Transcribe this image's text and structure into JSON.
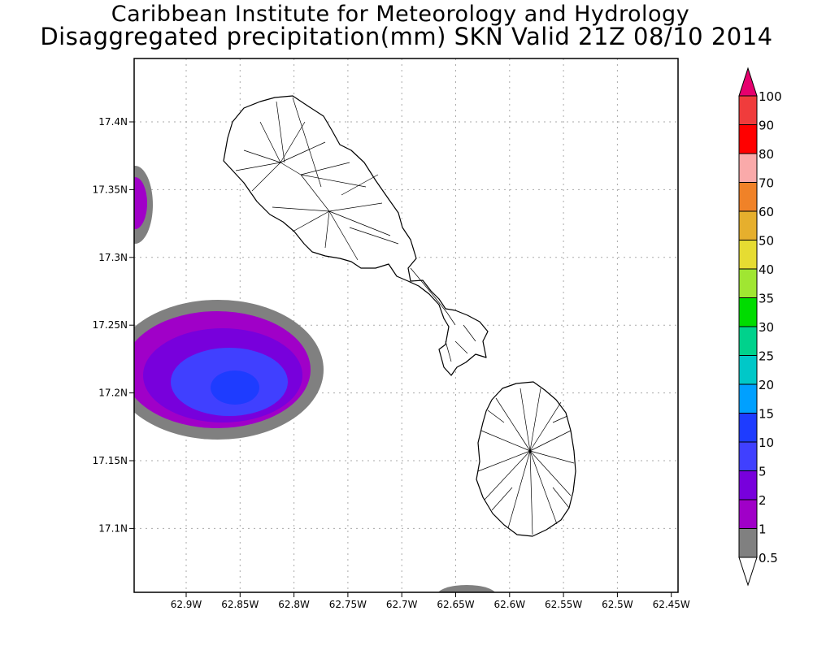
{
  "header": {
    "title": "Caribbean Institute for Meteorology and Hydrology",
    "subtitle": "Disaggregated precipitation(mm) SKN Valid 21Z 08/10 2014"
  },
  "map": {
    "lon_ticks": [
      "62.9W",
      "62.85W",
      "62.8W",
      "62.75W",
      "62.7W",
      "62.65W",
      "62.6W",
      "62.55W",
      "62.5W",
      "62.45W"
    ],
    "lat_ticks": [
      "17.4N",
      "17.35N",
      "17.3N",
      "17.25N",
      "17.2N",
      "17.15N",
      "17.1N"
    ],
    "grid": "dotted",
    "islands": [
      "St. Kitts",
      "Nevis"
    ]
  },
  "legend": {
    "labels": [
      "0.5",
      "1",
      "2",
      "5",
      "10",
      "15",
      "20",
      "25",
      "30",
      "35",
      "40",
      "50",
      "60",
      "70",
      "80",
      "90",
      "100"
    ],
    "colors": [
      "#808080",
      "#a000c8",
      "#7800dc",
      "#4040ff",
      "#1e3cff",
      "#00a0ff",
      "#00c8c8",
      "#00d28c",
      "#00dc00",
      "#a0e632",
      "#e6dc32",
      "#e6af2d",
      "#f08228",
      "#faaaaa",
      "#ff0000",
      "#f03c3c",
      "#e6006e"
    ]
  },
  "precip_areas": [
    {
      "level": "0.5",
      "color": "#808080"
    },
    {
      "level": "1",
      "color": "#a000c8"
    },
    {
      "level": "2",
      "color": "#7800dc"
    },
    {
      "level": "5",
      "color": "#4040ff"
    },
    {
      "level": "10",
      "color": "#1e3cff"
    }
  ]
}
